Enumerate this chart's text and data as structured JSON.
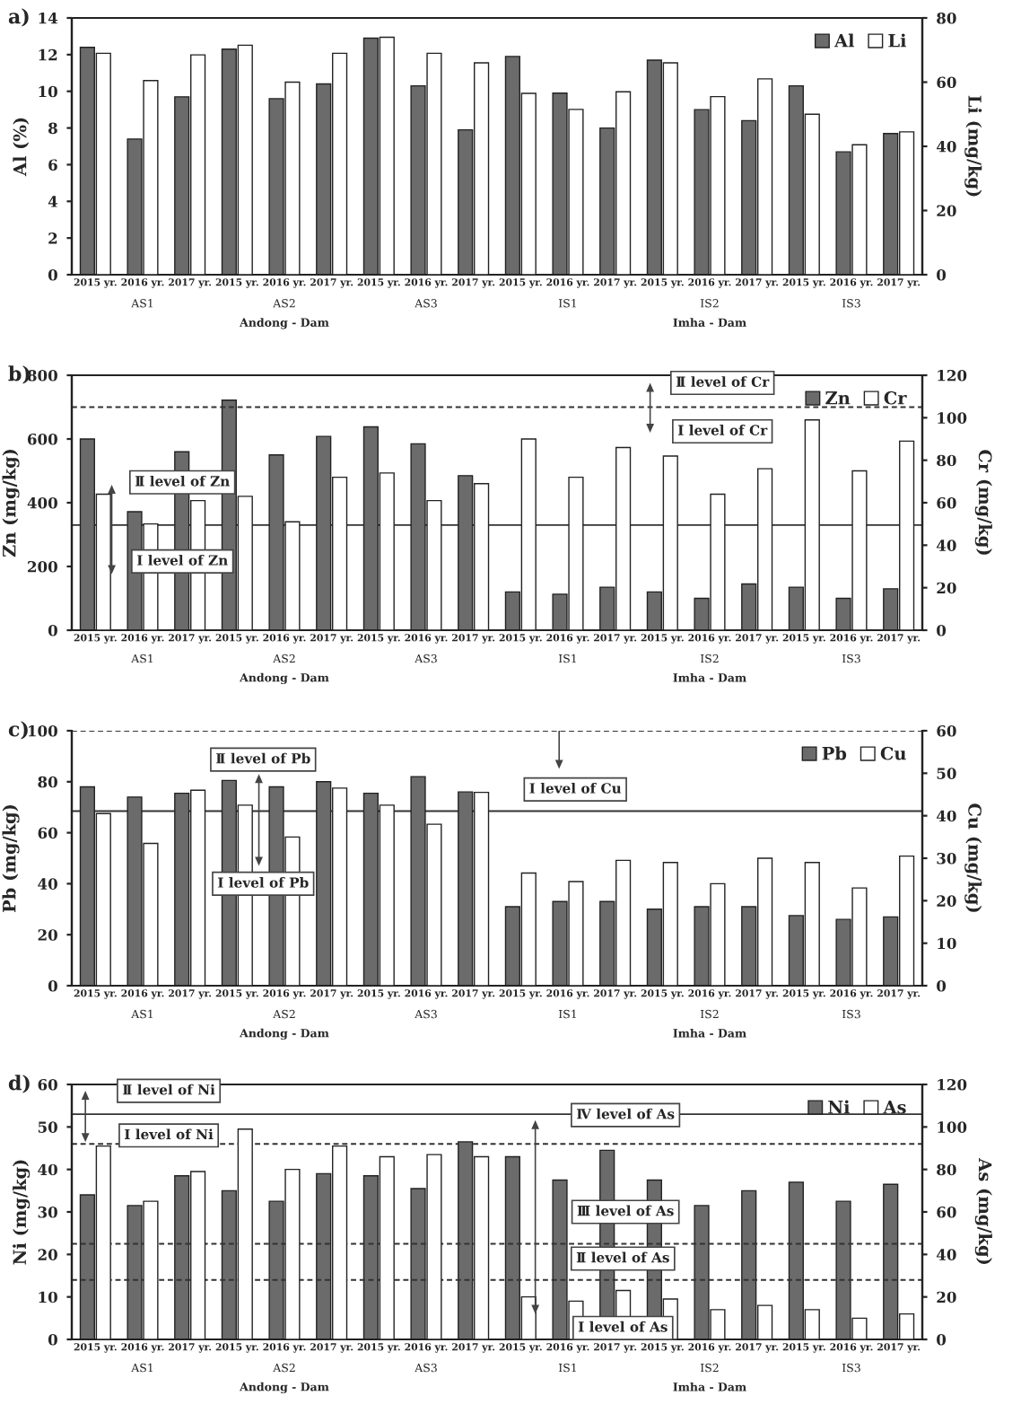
{
  "chart_data": [
    {
      "type": "bar",
      "title": "a)",
      "ylabel": "Al (%)",
      "y2label": "Li (mg/kg)",
      "categories": [
        "2015 yr.",
        "2016 yr.",
        "2017 yr.",
        "2015 yr.",
        "2016 yr.",
        "2017 yr.",
        "2015 yr.",
        "2016 yr.",
        "2017 yr.",
        "2015 yr.",
        "2016 yr.",
        "2017 yr.",
        "2015 yr.",
        "2016 yr.",
        "2017 yr.",
        "2015 yr.",
        "2016 yr.",
        "2017 yr."
      ],
      "series": [
        {
          "name": "Al",
          "color": "#6b6b6b",
          "values": [
            12.4,
            7.4,
            9.7,
            12.3,
            9.6,
            10.4,
            12.9,
            10.3,
            7.9,
            11.9,
            9.9,
            8.0,
            11.7,
            9.0,
            8.4,
            10.3,
            6.7,
            7.7
          ]
        },
        {
          "name": "Li",
          "color": "#ffffff",
          "axis": "y2",
          "values": [
            69,
            60.5,
            68.5,
            71.5,
            60,
            69,
            74,
            69,
            66,
            56.5,
            51.5,
            57,
            66,
            55.5,
            61,
            50,
            40.5,
            44.5
          ]
        }
      ],
      "ylim": [
        0,
        14
      ],
      "yticks": [
        0,
        2,
        4,
        6,
        8,
        10,
        12,
        14
      ],
      "y2lim": [
        0,
        80
      ],
      "y2ticks": [
        0,
        20,
        40,
        60,
        80
      ],
      "legend": "top right",
      "grid": false,
      "annotations": [
        "AS1",
        "AS2",
        "AS3",
        "IS1",
        "IS2",
        "IS3",
        "Andong - Dam",
        "Imha - Dam"
      ]
    },
    {
      "type": "bar",
      "title": "b)",
      "ylabel": "Zn (mg/kg)",
      "y2label": "Cr (mg/kg)",
      "categories": [
        "2015 yr.",
        "2016 yr.",
        "2017 yr.",
        "2015 yr.",
        "2016 yr.",
        "2017 yr.",
        "2015 yr.",
        "2016 yr.",
        "2017 yr.",
        "2015 yr.",
        "2016 yr.",
        "2017 yr.",
        "2015 yr.",
        "2016 yr.",
        "2017 yr.",
        "2015 yr.",
        "2016 yr.",
        "2017 yr."
      ],
      "series": [
        {
          "name": "Zn",
          "color": "#6b6b6b",
          "values": [
            600,
            372,
            560,
            722,
            550,
            608,
            638,
            585,
            485,
            120,
            113,
            135,
            120,
            100,
            145,
            135,
            100,
            130
          ]
        },
        {
          "name": "Cr",
          "color": "#ffffff",
          "axis": "y2",
          "values": [
            64,
            50,
            61,
            63,
            51,
            72,
            74,
            61,
            69,
            90,
            72,
            86,
            82,
            64,
            76,
            99,
            75,
            89
          ]
        }
      ],
      "ylim": [
        0,
        800
      ],
      "yticks": [
        0,
        200,
        400,
        600,
        800
      ],
      "y2lim": [
        0,
        120
      ],
      "y2ticks": [
        0,
        20,
        40,
        60,
        80,
        100,
        120
      ],
      "legend": "top right",
      "grid": false,
      "ref_lines": [
        {
          "axis": "y",
          "value": 330,
          "line_style": "solid",
          "color": "#333333"
        },
        {
          "axis": "y2",
          "value": 105,
          "line_style": "dashed",
          "color": "#333333"
        }
      ],
      "annotations": [
        "AS1",
        "AS2",
        "AS3",
        "IS1",
        "IS2",
        "IS3",
        "Andong - Dam",
        "Imha - Dam",
        "Ⅱ level of Zn",
        "Ⅰ level of Zn",
        "Ⅱ level of Cr",
        "Ⅰ level of Cr"
      ]
    },
    {
      "type": "bar",
      "title": "c)",
      "ylabel": "Pb (mg/kg)",
      "y2label": "Cu (mg/kg)",
      "categories": [
        "2015 yr.",
        "2016 yr.",
        "2017 yr.",
        "2015 yr.",
        "2016 yr.",
        "2017 yr.",
        "2015 yr.",
        "2016 yr.",
        "2017 yr.",
        "2015 yr.",
        "2016 yr.",
        "2017 yr.",
        "2015 yr.",
        "2016 yr.",
        "2017 yr.",
        "2015 yr.",
        "2016 yr.",
        "2017 yr."
      ],
      "series": [
        {
          "name": "Pb",
          "color": "#6b6b6b",
          "values": [
            78,
            74,
            75.5,
            80.5,
            78,
            80,
            75.5,
            82,
            76,
            31,
            33,
            33,
            30,
            31,
            31,
            27.5,
            26,
            27
          ]
        },
        {
          "name": "Cu",
          "color": "#ffffff",
          "axis": "y2",
          "values": [
            40.5,
            33.5,
            46,
            42.5,
            35,
            46.5,
            42.5,
            38,
            45.5,
            26.5,
            24.5,
            29.5,
            29,
            24,
            30,
            29,
            23,
            30.5
          ]
        }
      ],
      "ylim": [
        0,
        100
      ],
      "yticks": [
        0,
        20,
        40,
        60,
        80,
        100
      ],
      "y2lim": [
        0,
        60
      ],
      "y2ticks": [
        0,
        10,
        20,
        30,
        40,
        50,
        60
      ],
      "legend": "top right",
      "grid": false,
      "ref_lines": [
        {
          "axis": "y",
          "value": 68.5,
          "line_style": "solid",
          "color": "#333333"
        },
        {
          "axis": "y2",
          "value": 60,
          "line_style": "dashed",
          "color": "#333333"
        }
      ],
      "annotations": [
        "AS1",
        "AS2",
        "AS3",
        "IS1",
        "IS2",
        "IS3",
        "Andong - Dam",
        "Imha - Dam",
        "Ⅱ level of Pb",
        "Ⅰ level of Pb",
        "Ⅰ level of Cu"
      ]
    },
    {
      "type": "bar",
      "title": "d)",
      "ylabel": "Ni (mg/kg)",
      "y2label": "As (mg/kg)",
      "categories": [
        "2015 yr.",
        "2016 yr.",
        "2017 yr.",
        "2015 yr.",
        "2016 yr.",
        "2017 yr.",
        "2015 yr.",
        "2016 yr.",
        "2017 yr.",
        "2015 yr.",
        "2016 yr.",
        "2017 yr.",
        "2015 yr.",
        "2016 yr.",
        "2017 yr.",
        "2015 yr.",
        "2016 yr.",
        "2017 yr."
      ],
      "series": [
        {
          "name": "Ni",
          "color": "#6b6b6b",
          "values": [
            34,
            31.5,
            38.5,
            35,
            32.5,
            39,
            38.5,
            35.5,
            46.5,
            43,
            37.5,
            44.5,
            37.5,
            31.5,
            35,
            37,
            32.5,
            36.5
          ]
        },
        {
          "name": "As",
          "color": "#ffffff",
          "axis": "y2",
          "values": [
            91,
            65,
            79,
            99,
            80,
            91,
            86,
            87,
            86,
            20,
            18,
            23,
            19,
            14,
            16,
            14,
            10,
            12
          ]
        }
      ],
      "ylim": [
        0,
        60
      ],
      "yticks": [
        0,
        10,
        20,
        30,
        40,
        50,
        60
      ],
      "y2lim": [
        0,
        120
      ],
      "y2ticks": [
        0,
        20,
        40,
        60,
        80,
        100,
        120
      ],
      "legend": "top right",
      "grid": false,
      "ref_lines": [
        {
          "axis": "y",
          "value": 46,
          "line_style": "dashed",
          "color": "#333333"
        },
        {
          "axis": "y2",
          "value": 106,
          "line_style": "solid",
          "color": "#333333"
        },
        {
          "axis": "y2",
          "value": 45,
          "line_style": "dashed",
          "color": "#333333"
        },
        {
          "axis": "y2",
          "value": 28,
          "line_style": "dashed",
          "color": "#333333"
        }
      ],
      "annotations": [
        "AS1",
        "AS2",
        "AS3",
        "IS1",
        "IS2",
        "IS3",
        "Andong - Dam",
        "Imha - Dam",
        "Ⅱ level of Ni",
        "Ⅰ level of Ni",
        "Ⅳ level of As",
        "Ⅲ level of As",
        "Ⅱ level of As",
        "Ⅰ level of As"
      ]
    }
  ]
}
